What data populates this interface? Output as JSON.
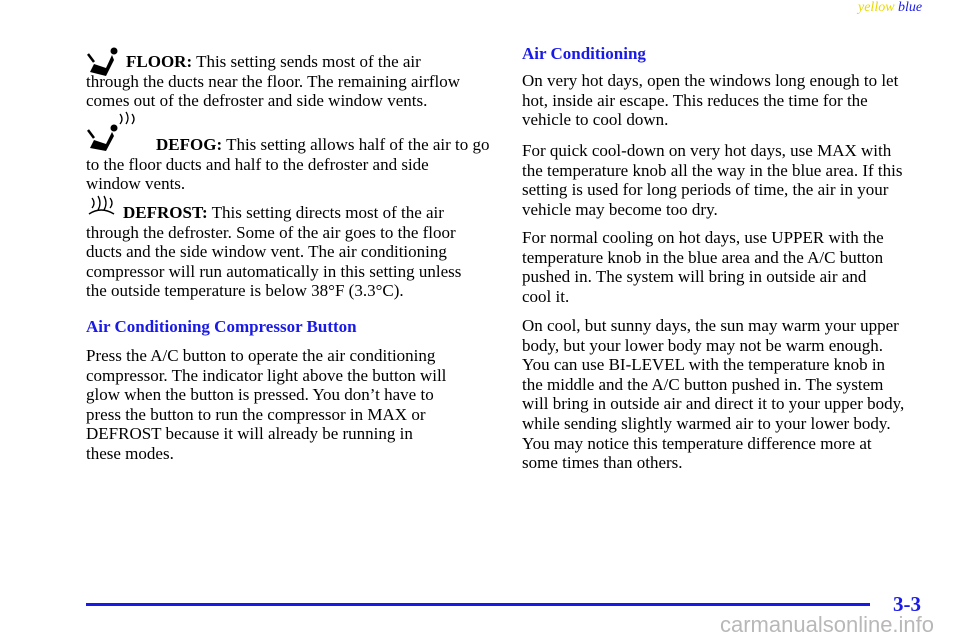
{
  "header": {
    "tag1": "yellow",
    "tag2": "blue"
  },
  "left": {
    "settings": [
      {
        "label": "FLOOR:",
        "lines": [
          "This setting sends most of the air",
          "through the ducts near the floor. The remaining airflow",
          "comes out of the defroster and side window vents."
        ]
      },
      {
        "label": "DEFOG:",
        "lines": [
          "This setting allows half of the air to go",
          "to the floor ducts and half to the defroster and side",
          "window vents."
        ]
      },
      {
        "label": "DEFROST:",
        "lines": [
          "This setting directs most of the air",
          "through the defroster. Some of the air goes to the floor",
          "ducts and the side window vent. The air conditioning",
          "compressor will run automatically in this setting unless",
          "the outside temperature is below 38°F (3.3°C)."
        ]
      }
    ],
    "heading": "Air Conditioning Compressor Button",
    "paragraph": [
      "Press the A/C button to operate the air conditioning",
      "compressor. The indicator light above the button will",
      "glow when the button is pressed. You don’t have to",
      "press the button to run the compressor in MAX or",
      "DEFROST because it will already be running in",
      "these modes."
    ]
  },
  "right": {
    "heading": "Air Conditioning",
    "paragraphs": [
      [
        "On very hot days, open the windows long enough to let",
        "hot, inside air escape. This reduces the time for the",
        "vehicle to cool down."
      ],
      [
        "For quick cool-down on very hot days, use MAX with",
        "the temperature knob all the way in the blue area. If this",
        "setting is used for long periods of time, the air in your",
        "vehicle may become too dry."
      ],
      [
        "For normal cooling on hot days, use UPPER with the",
        "temperature knob in the blue area and the A/C button",
        "pushed in. The system will bring in outside air and",
        "cool it."
      ],
      [
        "On cool, but sunny days, the sun may warm your upper",
        "body, but your lower body may not be warm enough.",
        "You can use BI-LEVEL with the temperature knob in",
        "the middle and the A/C button pushed in. The system",
        "will bring in outside air and direct it to your upper body,",
        "while sending slightly warmed air to your lower body.",
        "You may notice this temperature difference more at",
        "some times than others."
      ]
    ]
  },
  "footer": {
    "page": "3-3",
    "watermark": "carmanualsonline.info"
  }
}
